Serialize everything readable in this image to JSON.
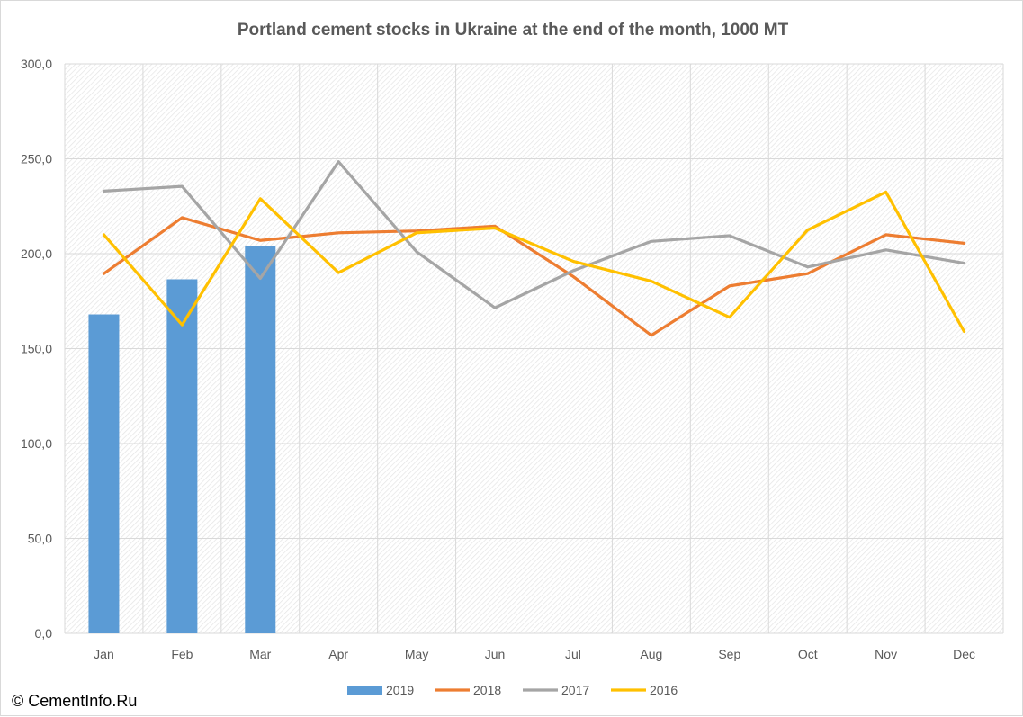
{
  "chart_data": {
    "type": "bar",
    "title": "Portland cement stocks in Ukraine at the end of the month, 1000 MT",
    "categories": [
      "Jan",
      "Feb",
      "Mar",
      "Apr",
      "May",
      "Jun",
      "Jul",
      "Aug",
      "Sep",
      "Oct",
      "Nov",
      "Dec"
    ],
    "ylim": [
      0,
      300
    ],
    "yticks": [
      "0,0",
      "50,0",
      "100,0",
      "150,0",
      "200,0",
      "250,0",
      "300,0"
    ],
    "ytick_values": [
      0,
      50,
      100,
      150,
      200,
      250,
      300
    ],
    "grid": true,
    "legend_position": "bottom",
    "series": [
      {
        "name": "2019",
        "kind": "bar",
        "color": "#5b9bd5",
        "values": [
          168,
          186.5,
          204,
          null,
          null,
          null,
          null,
          null,
          null,
          null,
          null,
          null
        ]
      },
      {
        "name": "2018",
        "kind": "line",
        "color": "#ed7d31",
        "values": [
          189.5,
          219,
          207,
          211,
          212,
          214.5,
          188,
          157,
          183,
          189.5,
          210,
          205.5
        ]
      },
      {
        "name": "2017",
        "kind": "line",
        "color": "#a5a5a5",
        "values": [
          233,
          235.5,
          187,
          248.5,
          201,
          171.5,
          191,
          206.5,
          209.5,
          193,
          202,
          195
        ]
      },
      {
        "name": "2016",
        "kind": "line",
        "color": "#ffc000",
        "values": [
          210,
          162.5,
          229,
          190,
          211,
          213.5,
          196,
          185.5,
          166.5,
          212.5,
          232.5,
          159
        ]
      }
    ]
  },
  "copyright": "© CementInfo.Ru"
}
